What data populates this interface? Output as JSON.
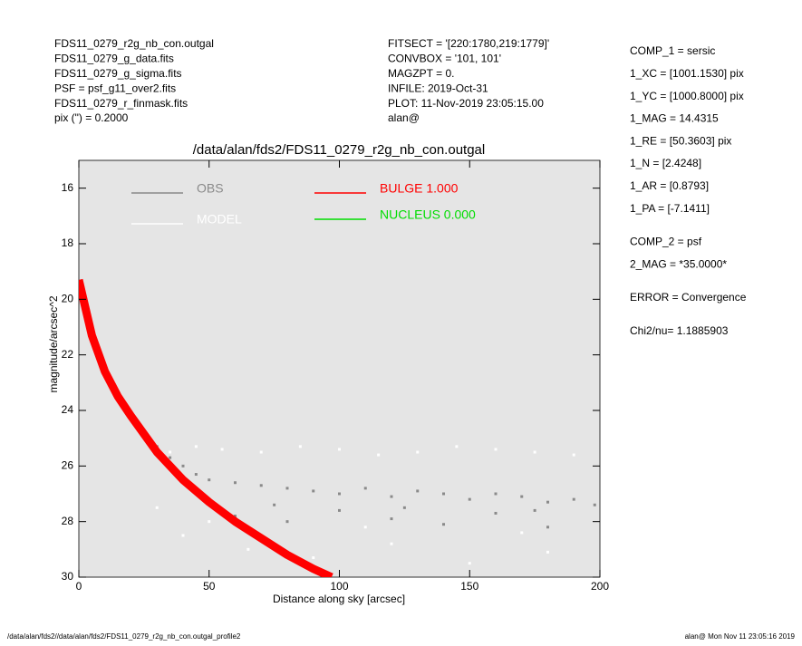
{
  "chart_data": {
    "type": "scatter",
    "title": "/data/alan/fds2/FDS11_0279_r2g_nb_con.outgal",
    "x_label": "Distance along sky [arcsec]",
    "y_label": "magnitude/arcsec^2",
    "annotations": {
      "left": [
        "FDS11_0279_r2g_nb_con.outgal",
        "FDS11_0279_g_data.fits",
        "FDS11_0279_g_sigma.fits",
        "PSF    = psf_g11_over2.fits",
        "FDS11_0279_r_finmask.fits",
        "pix (\") =  0.2000"
      ],
      "middle": [
        "FITSECT = '[220:1780,219:1779]'",
        "CONVBOX = '101, 101'",
        "MAGZPT  =                0.",
        "INFILE: 2019-Oct-31",
        "PLOT: 11-Nov-2019 23:05:15.00",
        "alan@"
      ],
      "right": [
        "COMP_1  = sersic",
        "1_XC    = [1001.1530] pix",
        "1_YC    = [1000.8000] pix",
        "1_MAG   = 14.4315",
        "1_RE    = [50.3603] pix",
        "1_N     = [2.4248]",
        "1_AR    = [0.8793]",
        "1_PA    = [-7.1411]",
        "COMP_2  = psf",
        "2_MAG   = *35.0000*",
        "ERROR   = Convergence",
        "Chi2/nu=      1.1885903"
      ],
      "footer_left": "/data/alan/fds2//data/alan/fds2/FDS11_0279_r2g_nb_con.outgal_profile2",
      "footer_right": "alan@  Mon Nov 11 23:05:16 2019"
    },
    "xlim": [
      0,
      200
    ],
    "xticks": [
      0,
      50,
      100,
      150,
      200
    ],
    "ylim": [
      30,
      15
    ],
    "yticks": [
      16,
      18,
      20,
      22,
      24,
      26,
      28,
      30
    ],
    "series": [
      {
        "name": "OBS",
        "color": "#8a8a8a",
        "mark": "points",
        "x": [
          0.5,
          2,
          4,
          6,
          8,
          10,
          13,
          16,
          20,
          25,
          30,
          35,
          40,
          45,
          50,
          60,
          70,
          80,
          90,
          100,
          110,
          120,
          130,
          140,
          150,
          160,
          170,
          180,
          190,
          198,
          60,
          80,
          100,
          120,
          140,
          160,
          180,
          50,
          75,
          125,
          175
        ],
        "values": [
          19.4,
          20.3,
          21.1,
          21.7,
          22.2,
          22.7,
          23.2,
          23.7,
          24.2,
          24.8,
          25.3,
          25.7,
          26.0,
          26.3,
          26.5,
          26.6,
          26.7,
          26.8,
          26.9,
          27.0,
          26.8,
          27.1,
          26.9,
          27.0,
          27.2,
          27.0,
          27.1,
          27.3,
          27.2,
          27.4,
          27.8,
          28.0,
          27.6,
          27.9,
          28.1,
          27.7,
          28.2,
          27.2,
          27.4,
          27.5,
          27.6
        ]
      },
      {
        "name": "MODEL",
        "color": "#ffffff",
        "mark": "points",
        "x": [
          35,
          45,
          55,
          70,
          85,
          100,
          115,
          130,
          145,
          160,
          175,
          190,
          40,
          65,
          90,
          120,
          150,
          180,
          30,
          50,
          110,
          170
        ],
        "values": [
          25.5,
          25.3,
          25.4,
          25.5,
          25.3,
          25.4,
          25.6,
          25.5,
          25.3,
          25.4,
          25.5,
          25.6,
          28.5,
          29.0,
          29.3,
          28.8,
          29.5,
          29.1,
          27.5,
          28.0,
          28.2,
          28.4
        ]
      },
      {
        "name": "BULGE  1.000",
        "color": "#ff0000",
        "mark": "line",
        "x": [
          0,
          5,
          10,
          15,
          20,
          30,
          40,
          50,
          60,
          70,
          80,
          90,
          97
        ],
        "values": [
          19.3,
          21.3,
          22.6,
          23.5,
          24.2,
          25.5,
          26.5,
          27.3,
          28.0,
          28.6,
          29.2,
          29.7,
          30.0
        ]
      },
      {
        "name": "NUCLEUS  0.000",
        "color": "#00dd00",
        "mark": "line",
        "x": [],
        "values": []
      }
    ]
  }
}
